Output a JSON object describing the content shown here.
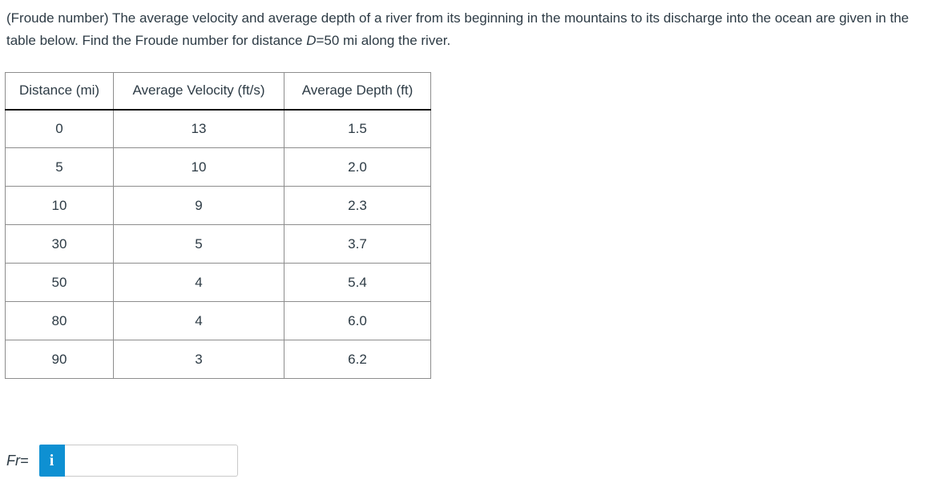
{
  "question": {
    "text_before_variable": "(Froude number) The average velocity and average depth of a river from its beginning in the mountains to its discharge into the ocean are given in the table below. Find the Froude number for distance ",
    "variable": "D",
    "text_after_variable": "=50 mi along the river."
  },
  "table": {
    "headers": [
      "Distance (mi)",
      "Average Velocity (ft/s)",
      "Average Depth (ft)"
    ],
    "rows": [
      [
        "0",
        "13",
        "1.5"
      ],
      [
        "5",
        "10",
        "2.0"
      ],
      [
        "10",
        "9",
        "2.3"
      ],
      [
        "30",
        "5",
        "3.7"
      ],
      [
        "50",
        "4",
        "5.4"
      ],
      [
        "80",
        "4",
        "6.0"
      ],
      [
        "90",
        "3",
        "6.2"
      ]
    ]
  },
  "answer": {
    "label": "Fr=",
    "info_icon_glyph": "i",
    "value": "",
    "placeholder": ""
  },
  "colors": {
    "text": "#2d3b45",
    "info_button_blue": "#0e90d2",
    "table_border": "#8d8d8d",
    "header_divider": "#0d0d0d",
    "input_border": "#c9c9c9"
  }
}
